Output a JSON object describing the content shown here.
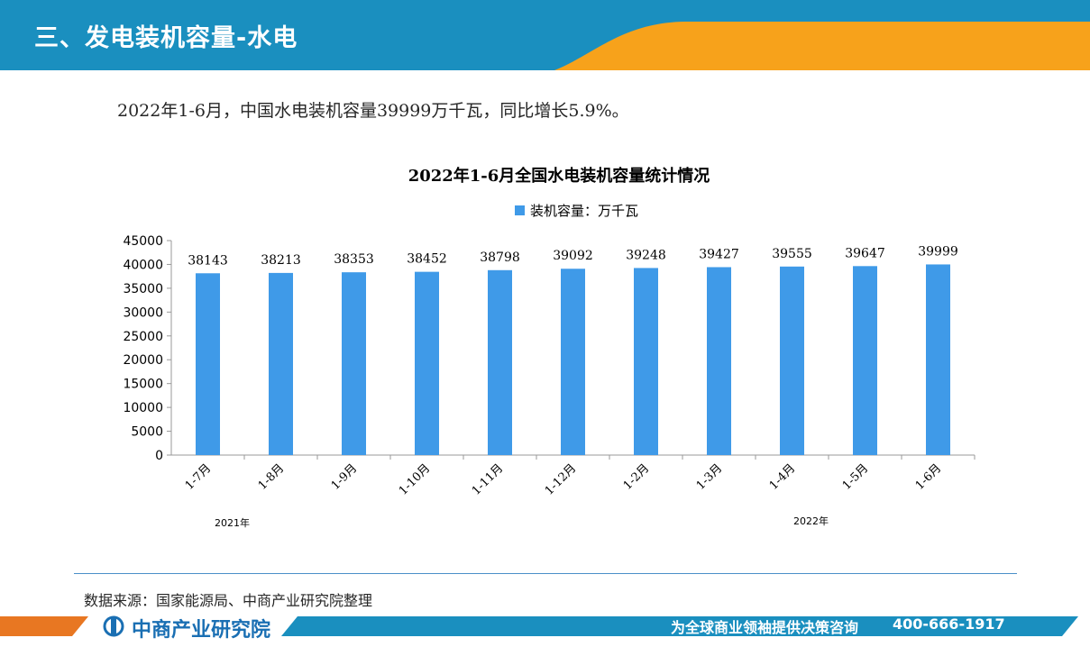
{
  "header": {
    "title": "三、发电装机容量-水电",
    "colors": {
      "blue": "#1a8fbf",
      "orange": "#f7a21b"
    }
  },
  "summary": "2022年1-6月，中国水电装机容量39999万千瓦，同比增长5.9%。",
  "chart_data": {
    "type": "bar",
    "title": "2022年1-6月全国水电装机容量统计情况",
    "legend": "装机容量：万千瓦",
    "legend_position": "top-center",
    "categories": [
      "1-7月",
      "1-8月",
      "1-9月",
      "1-10月",
      "1-11月",
      "1-12月",
      "1-2月",
      "1-3月",
      "1-4月",
      "1-5月",
      "1-6月"
    ],
    "series": [
      {
        "name": "装机容量：万千瓦",
        "values": [
          38143,
          38213,
          38353,
          38452,
          38798,
          39092,
          39248,
          39427,
          39555,
          39647,
          39999
        ]
      }
    ],
    "ylim": [
      0,
      45000
    ],
    "yticks": [
      0,
      5000,
      10000,
      15000,
      20000,
      25000,
      30000,
      35000,
      40000,
      45000
    ],
    "year_groups": [
      "2021年",
      "2022年"
    ],
    "bar_color": "#3f9ae8",
    "grid": false
  },
  "source": "数据来源：国家能源局、中商产业研究院整理",
  "footer": {
    "logo_text": "中商产业研究院",
    "slogan": "为全球商业领袖提供决策咨询",
    "phone": "400-666-1917"
  }
}
